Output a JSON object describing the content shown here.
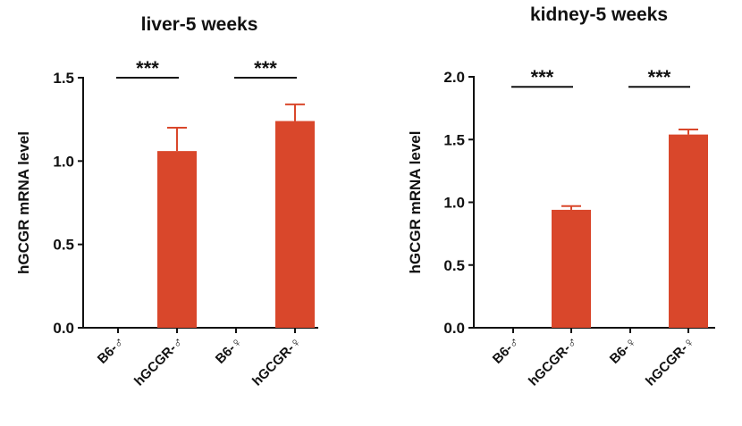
{
  "chart_data": [
    {
      "type": "bar",
      "title": "liver-5 weeks",
      "ylabel": "hGCGR mRNA level",
      "xlabel": "",
      "categories": [
        "B6-♂",
        "hGCGR-♂",
        "B6-♀",
        "hGCGR-♀"
      ],
      "values": [
        0,
        1.06,
        0,
        1.24
      ],
      "errors": [
        0,
        0.14,
        0,
        0.1
      ],
      "ylim": [
        0,
        1.5
      ],
      "yticks": [
        "0.0",
        "0.5",
        "1.0",
        "1.5"
      ],
      "ytick_values": [
        0,
        0.5,
        1.0,
        1.5
      ],
      "bar_color": "#d9472b",
      "significance": [
        {
          "pair": [
            0,
            1
          ],
          "label": "***",
          "y": 1.5
        },
        {
          "pair": [
            2,
            3
          ],
          "label": "***",
          "y": 1.5
        }
      ]
    },
    {
      "type": "bar",
      "title": "kidney-5 weeks",
      "ylabel": "hGCGR mRNA level",
      "xlabel": "",
      "categories": [
        "B6-♂",
        "hGCGR-♂",
        "B6-♀",
        "hGCGR-♀"
      ],
      "values": [
        0,
        0.94,
        0,
        1.54
      ],
      "errors": [
        0,
        0.03,
        0,
        0.04
      ],
      "ylim": [
        0,
        2.0
      ],
      "yticks": [
        "0.0",
        "0.5",
        "1.0",
        "1.5",
        "2.0"
      ],
      "ytick_values": [
        0,
        0.5,
        1.0,
        1.5,
        2.0
      ],
      "bar_color": "#d9472b",
      "significance": [
        {
          "pair": [
            0,
            1
          ],
          "label": "***",
          "y": 1.92
        },
        {
          "pair": [
            2,
            3
          ],
          "label": "***",
          "y": 1.92
        }
      ]
    }
  ]
}
